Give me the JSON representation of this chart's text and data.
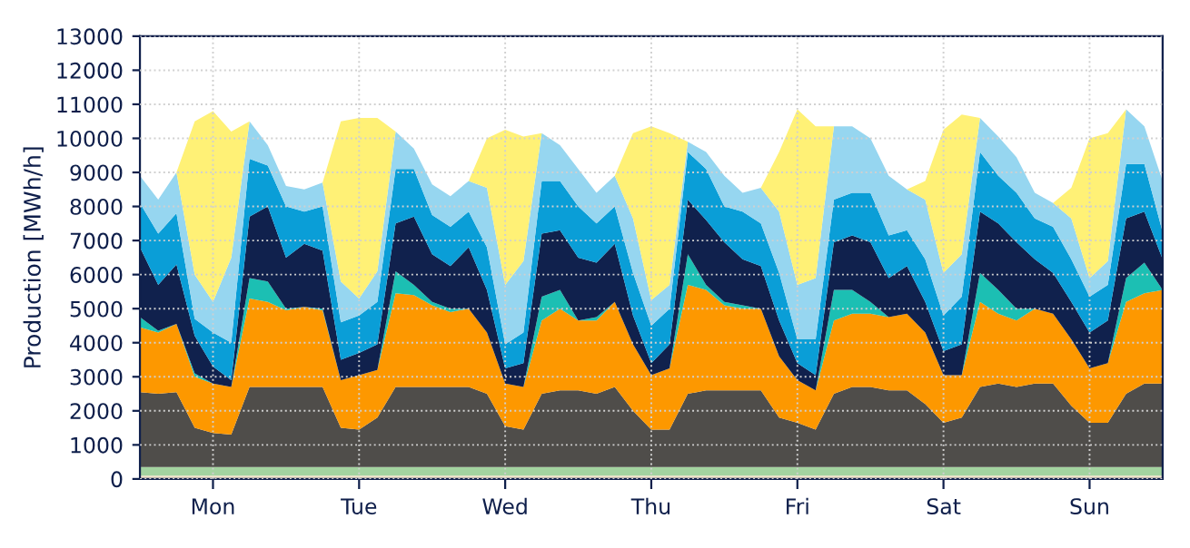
{
  "chart_data": {
    "type": "area",
    "stacked": true,
    "ylabel": "Production [MWh/h]",
    "categories": [
      null,
      null,
      null,
      null,
      "Mon",
      null,
      null,
      null,
      null,
      null,
      null,
      null,
      "Tue",
      null,
      null,
      null,
      null,
      null,
      null,
      null,
      "Wed",
      null,
      null,
      null,
      null,
      null,
      null,
      null,
      "Thu",
      null,
      null,
      null,
      null,
      null,
      null,
      null,
      "Fri",
      null,
      null,
      null,
      null,
      null,
      null,
      null,
      "Sat",
      null,
      null,
      null,
      null,
      null,
      null,
      null,
      "Sun",
      null,
      null,
      null,
      null
    ],
    "ylim": [
      0,
      13000
    ],
    "yticks": [
      0,
      1000,
      2000,
      3000,
      4000,
      5000,
      6000,
      7000,
      8000,
      9000,
      10000,
      11000,
      12000,
      13000
    ],
    "grid": true,
    "series": [
      {
        "color": "#f2e3c9",
        "values": [
          100,
          100,
          100,
          100,
          100,
          100,
          100,
          100,
          100,
          100,
          100,
          100,
          100,
          100,
          100,
          100,
          100,
          100,
          100,
          100,
          100,
          100,
          100,
          100,
          100,
          100,
          100,
          100,
          100,
          100,
          100,
          100,
          100,
          100,
          100,
          100,
          100,
          100,
          100,
          100,
          100,
          100,
          100,
          100,
          100,
          100,
          100,
          100,
          100,
          100,
          100,
          100,
          100,
          100,
          100,
          100,
          100
        ]
      },
      {
        "color": "#a3d3a0",
        "values": [
          250,
          250,
          250,
          250,
          250,
          250,
          250,
          250,
          250,
          250,
          250,
          250,
          250,
          250,
          250,
          250,
          250,
          250,
          250,
          250,
          250,
          250,
          250,
          250,
          250,
          250,
          250,
          250,
          250,
          250,
          250,
          250,
          250,
          250,
          250,
          250,
          250,
          250,
          250,
          250,
          250,
          250,
          250,
          250,
          250,
          250,
          250,
          250,
          250,
          250,
          250,
          250,
          250,
          250,
          250,
          250,
          250
        ]
      },
      {
        "color": "#4f4d4a",
        "values": [
          2200,
          2150,
          2200,
          1150,
          1000,
          950,
          2350,
          2350,
          2350,
          2350,
          2350,
          1150,
          1100,
          1450,
          2350,
          2350,
          2350,
          2350,
          2350,
          2150,
          1200,
          1100,
          2150,
          2250,
          2250,
          2150,
          2350,
          1650,
          1100,
          1100,
          2150,
          2250,
          2250,
          2250,
          2250,
          1450,
          1300,
          1100,
          2150,
          2350,
          2350,
          2250,
          2250,
          1850,
          1300,
          1450,
          2350,
          2450,
          2350,
          2450,
          2450,
          1800,
          1300,
          1300,
          2150,
          2450,
          2450
        ]
      },
      {
        "color": "#fd9800",
        "values": [
          1900,
          1800,
          2000,
          1500,
          1450,
          1400,
          2600,
          2500,
          2250,
          2350,
          2250,
          1400,
          1600,
          1400,
          2750,
          2700,
          2400,
          2200,
          2300,
          1800,
          1250,
          1250,
          2150,
          2400,
          2050,
          2150,
          2500,
          1950,
          1600,
          1800,
          3200,
          2950,
          2500,
          2400,
          2400,
          1800,
          1250,
          1150,
          2150,
          2150,
          2150,
          2150,
          2250,
          2100,
          1400,
          1250,
          2500,
          2050,
          1950,
          2200,
          2050,
          1950,
          1600,
          1750,
          2700,
          2650,
          2750
        ]
      },
      {
        "color": "#1cbfb3",
        "values": [
          300,
          50,
          0,
          100,
          0,
          0,
          600,
          600,
          50,
          0,
          50,
          0,
          0,
          0,
          650,
          300,
          100,
          100,
          0,
          0,
          0,
          0,
          700,
          550,
          0,
          100,
          0,
          0,
          0,
          0,
          900,
          150,
          100,
          100,
          0,
          0,
          0,
          0,
          900,
          700,
          350,
          0,
          0,
          0,
          0,
          0,
          850,
          700,
          350,
          0,
          0,
          0,
          0,
          0,
          700,
          900,
          0
        ]
      },
      {
        "color": "#10214d",
        "values": [
          2050,
          1350,
          1750,
          1100,
          500,
          200,
          1800,
          2200,
          1500,
          1850,
          1700,
          600,
          650,
          750,
          1400,
          2000,
          1400,
          1250,
          1800,
          1250,
          450,
          700,
          1850,
          1750,
          1850,
          1600,
          1700,
          850,
          350,
          700,
          1600,
          1900,
          1750,
          1350,
          1250,
          1050,
          500,
          450,
          1400,
          1600,
          1750,
          1150,
          1400,
          900,
          700,
          900,
          1800,
          1950,
          1950,
          1450,
          1200,
          1100,
          1050,
          1250,
          1750,
          1500,
          900
        ]
      },
      {
        "color": "#0a9ed7",
        "values": [
          1300,
          1500,
          1500,
          500,
          1000,
          1100,
          1700,
          1200,
          1500,
          950,
          1300,
          1100,
          1100,
          1250,
          1600,
          1400,
          1150,
          1150,
          1050,
          1250,
          700,
          900,
          1550,
          1450,
          1500,
          1150,
          1100,
          1250,
          1100,
          1050,
          1400,
          1500,
          1050,
          1400,
          1250,
          1400,
          700,
          1050,
          1250,
          1250,
          1450,
          1250,
          1050,
          1250,
          1050,
          1400,
          1750,
          1400,
          1450,
          1200,
          1350,
          1250,
          1050,
          1050,
          1600,
          1400,
          800
        ]
      },
      {
        "color": "#96d6f0",
        "values": [
          800,
          1000,
          1200,
          1300,
          900,
          2500,
          1100,
          600,
          600,
          650,
          700,
          1200,
          500,
          900,
          1100,
          600,
          900,
          900,
          900,
          1750,
          1750,
          2100,
          1400,
          1050,
          1100,
          900,
          900,
          1600,
          750,
          700,
          300,
          500,
          900,
          550,
          1050,
          1800,
          1600,
          1800,
          2150,
          1950,
          1600,
          1750,
          1200,
          1750,
          1250,
          1250,
          1000,
          1150,
          1050,
          750,
          700,
          1200,
          550,
          700,
          1600,
          1100,
          1500
        ]
      },
      {
        "color": "#fff176",
        "values": [
          0,
          0,
          0,
          4500,
          5600,
          3700,
          0,
          0,
          0,
          0,
          0,
          4700,
          5300,
          4500,
          0,
          0,
          0,
          0,
          0,
          1450,
          4550,
          3650,
          0,
          0,
          0,
          0,
          0,
          2500,
          5100,
          4450,
          0,
          0,
          0,
          0,
          0,
          1750,
          5150,
          4450,
          0,
          0,
          0,
          0,
          0,
          550,
          4200,
          4100,
          0,
          0,
          0,
          0,
          0,
          900,
          4100,
          3750,
          0,
          0,
          0
        ]
      }
    ]
  }
}
